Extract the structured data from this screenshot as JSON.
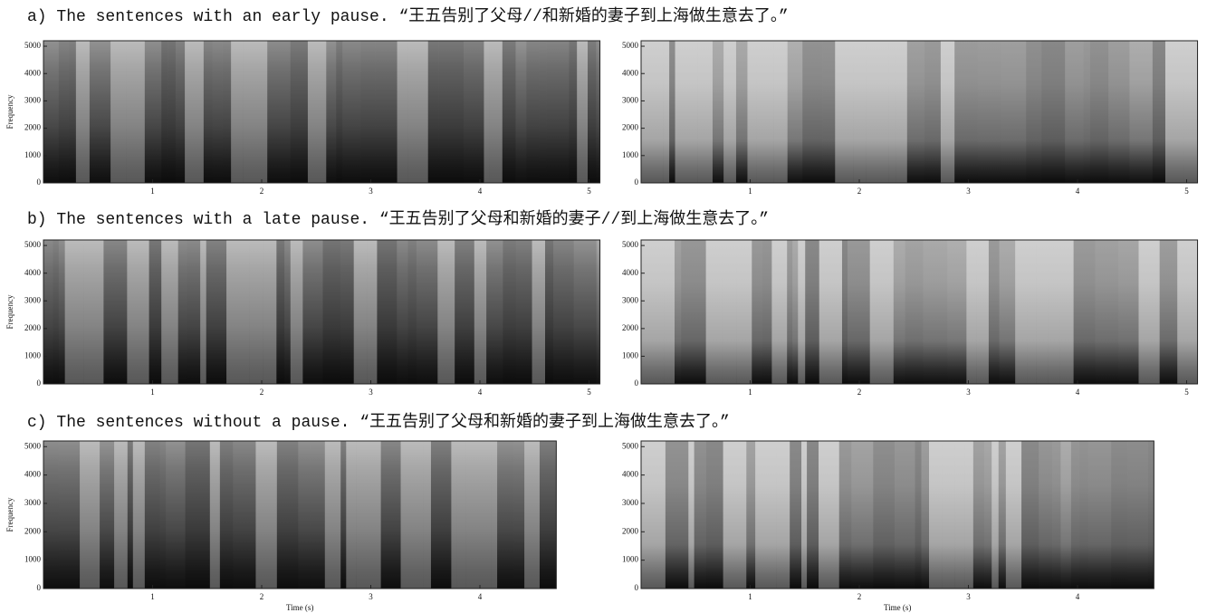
{
  "chart_data": [
    {
      "type": "spectrogram",
      "title": "a) The sentences with an early pause. “王五告别了父母//和新婚的妻子到上海做生意去了。”",
      "plots": [
        {
          "ylabel": "Frequency",
          "xlim": [
            0,
            5.1
          ],
          "ylim": [
            0,
            5200
          ],
          "xticks": [
            1,
            2,
            3,
            4,
            5
          ],
          "yticks": [
            0,
            1000,
            2000,
            3000,
            4000,
            5000
          ]
        },
        {
          "xlim": [
            0,
            5.1
          ],
          "ylim": [
            0,
            5200
          ],
          "xticks": [
            1,
            2,
            3,
            4,
            5
          ],
          "yticks": [
            0,
            1000,
            2000,
            3000,
            4000,
            5000
          ]
        }
      ]
    },
    {
      "type": "spectrogram",
      "title": "b) The sentences with a late pause. “王五告别了父母和新婚的妻子//到上海做生意去了。”",
      "plots": [
        {
          "ylabel": "Frequency",
          "xlim": [
            0,
            5.1
          ],
          "ylim": [
            0,
            5200
          ],
          "xticks": [
            1,
            2,
            3,
            4,
            5
          ],
          "yticks": [
            0,
            1000,
            2000,
            3000,
            4000,
            5000
          ]
        },
        {
          "xlim": [
            0,
            5.1
          ],
          "ylim": [
            0,
            5200
          ],
          "xticks": [
            1,
            2,
            3,
            4,
            5
          ],
          "yticks": [
            0,
            1000,
            2000,
            3000,
            4000,
            5000
          ]
        }
      ]
    },
    {
      "type": "spectrogram",
      "title": "c) The sentences without a pause. “王五告别了父母和新婚的妻子到上海做生意去了。”",
      "plots": [
        {
          "ylabel": "Frequency",
          "xlabel": "Time (s)",
          "xlim": [
            0,
            4.7
          ],
          "ylim": [
            0,
            5200
          ],
          "xticks": [
            1,
            2,
            3,
            4
          ],
          "yticks": [
            0,
            1000,
            2000,
            3000,
            4000,
            5000
          ]
        },
        {
          "xlabel": "Time (s)",
          "xlim": [
            0,
            4.7
          ],
          "ylim": [
            0,
            5200
          ],
          "xticks": [
            1,
            2,
            3,
            4
          ],
          "yticks": [
            0,
            1000,
            2000,
            3000,
            4000,
            5000
          ]
        }
      ]
    }
  ]
}
